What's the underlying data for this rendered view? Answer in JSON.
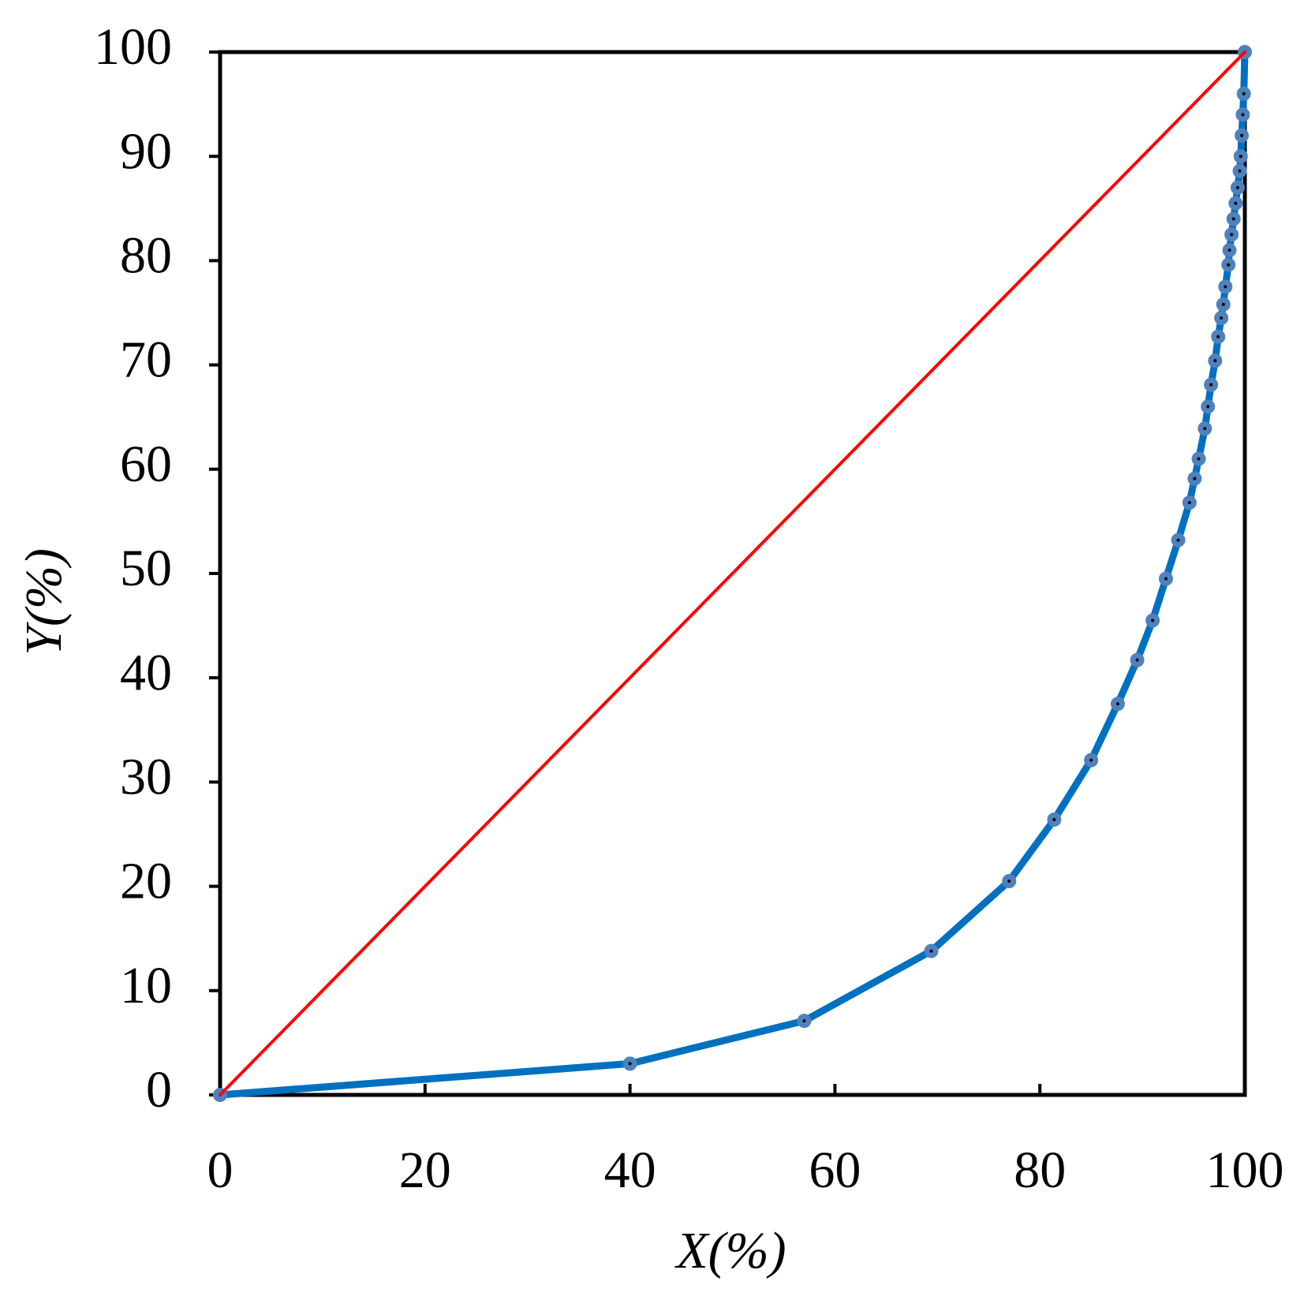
{
  "chart_data": {
    "type": "line",
    "x_label": "X(%)",
    "y_label": "Y(%)",
    "xlim": [
      0,
      100
    ],
    "ylim": [
      0,
      100
    ],
    "xticks": [
      0,
      20,
      40,
      60,
      80,
      100
    ],
    "yticks": [
      0,
      10,
      20,
      30,
      40,
      50,
      60,
      70,
      80,
      90,
      100
    ],
    "grid": false,
    "series": [
      {
        "color": "#0070c0",
        "marker_color": "#4f81bd",
        "markers": true,
        "x": [
          0,
          40,
          57,
          69.4,
          77,
          81.4,
          85,
          87.6,
          89.5,
          91,
          92.3,
          93.5,
          94.6,
          95.1,
          95.5,
          96.1,
          96.4,
          96.7,
          97.1,
          97.4,
          97.7,
          97.9,
          98.1,
          98.4,
          98.5,
          98.7,
          98.9,
          99.1,
          99.3,
          99.5,
          99.6,
          99.7,
          99.8,
          99.9,
          100
        ],
        "values": [
          0,
          3,
          7.1,
          13.8,
          20.5,
          26.4,
          32.1,
          37.5,
          41.7,
          45.5,
          49.5,
          53.2,
          56.8,
          59.1,
          61,
          63.9,
          66,
          68.1,
          70.4,
          72.7,
          74.5,
          75.8,
          77.5,
          79.6,
          81,
          82.5,
          84,
          85.5,
          87,
          88.6,
          90,
          92,
          94,
          96,
          100
        ]
      },
      {
        "color": "#ff0000",
        "markers": false,
        "x": [
          0,
          100
        ],
        "values": [
          0,
          100
        ]
      }
    ]
  }
}
